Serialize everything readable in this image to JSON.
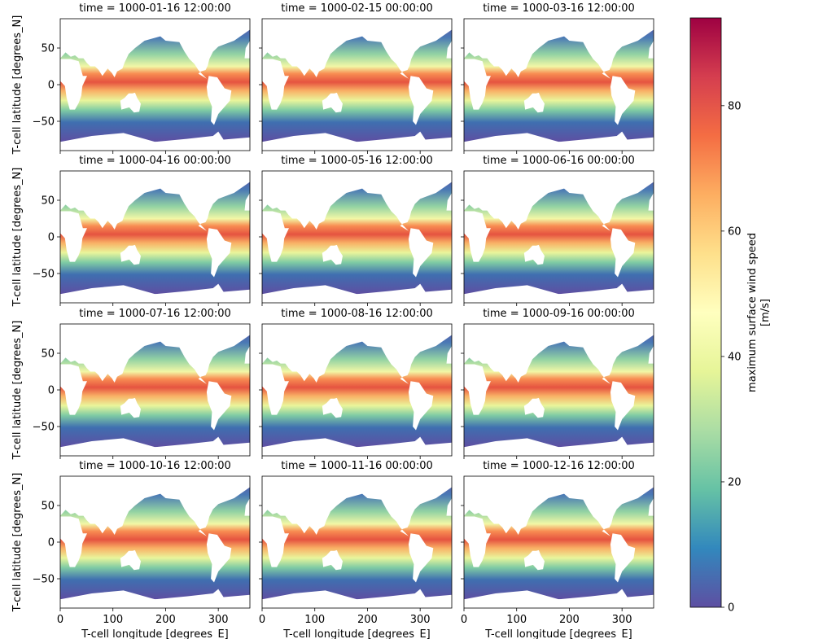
{
  "chart_data": {
    "type": "heatmap",
    "panel_titles": [
      "time = 1000-01-16 12:00:00",
      "time = 1000-02-15 00:00:00",
      "time = 1000-03-16 12:00:00",
      "time = 1000-04-16 00:00:00",
      "time = 1000-05-16 12:00:00",
      "time = 1000-06-16 00:00:00",
      "time = 1000-07-16 12:00:00",
      "time = 1000-08-16 12:00:00",
      "time = 1000-09-16 00:00:00",
      "time = 1000-10-16 12:00:00",
      "time = 1000-11-16 00:00:00",
      "time = 1000-12-16 12:00:00"
    ],
    "xlabel": "T-cell longitude [degrees_E]",
    "ylabel": "T-cell latitude [degrees_N]",
    "xlim": [
      0,
      360
    ],
    "ylim": [
      -90,
      90
    ],
    "x_ticks": [
      0,
      100,
      200,
      300
    ],
    "y_ticks": [
      50,
      0,
      -50
    ],
    "colorbar": {
      "label_line1": "maximum surface wind speed",
      "label_line2": "[m/s]",
      "range": [
        0,
        94
      ],
      "ticks": [
        0,
        20,
        40,
        60,
        80
      ],
      "colormap": "Spectral_r",
      "colors": [
        "#5e4fa2",
        "#3288bd",
        "#66c2a5",
        "#abdda4",
        "#e6f598",
        "#ffffbf",
        "#fee08b",
        "#fdae61",
        "#f46d43",
        "#d53e4f",
        "#9e0142"
      ]
    },
    "land_color": "#ffffff",
    "grid": false
  }
}
